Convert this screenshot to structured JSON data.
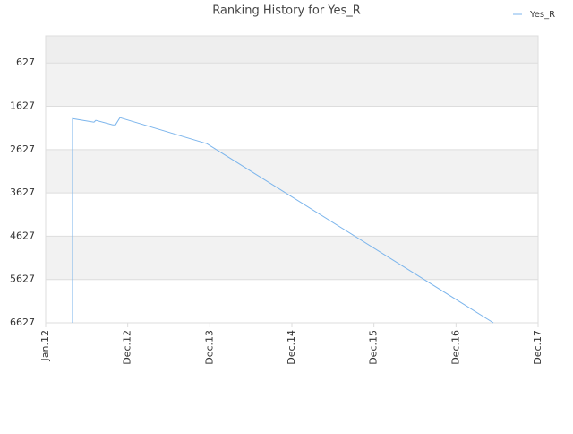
{
  "chart_data": {
    "type": "line",
    "title": "Ranking History for Yes_R",
    "x": [
      0.327,
      0.327,
      0.589,
      0.611,
      0.818,
      0.851,
      0.905,
      1.964,
      5.455
    ],
    "series": [
      {
        "name": "Yes_R",
        "color": "#7cb5ec",
        "values": [
          6627,
          1910,
          1993,
          1951,
          2055,
          2055,
          1889,
          2489,
          6627
        ]
      }
    ],
    "xlim": [
      0,
      6
    ],
    "xticks": [
      {
        "value": 0,
        "label": "Jan.12"
      },
      {
        "value": 1,
        "label": "Dec.12"
      },
      {
        "value": 2,
        "label": "Dec.13"
      },
      {
        "value": 3,
        "label": "Dec.14"
      },
      {
        "value": 4,
        "label": "Dec.15"
      },
      {
        "value": 5,
        "label": "Dec.16"
      },
      {
        "value": 6,
        "label": "Dec.17"
      }
    ],
    "ylim": [
      6627,
      1
    ],
    "yticks": [
      627,
      1627,
      2627,
      3627,
      4627,
      5627,
      6627
    ],
    "grid": true,
    "legend": "top-right"
  }
}
